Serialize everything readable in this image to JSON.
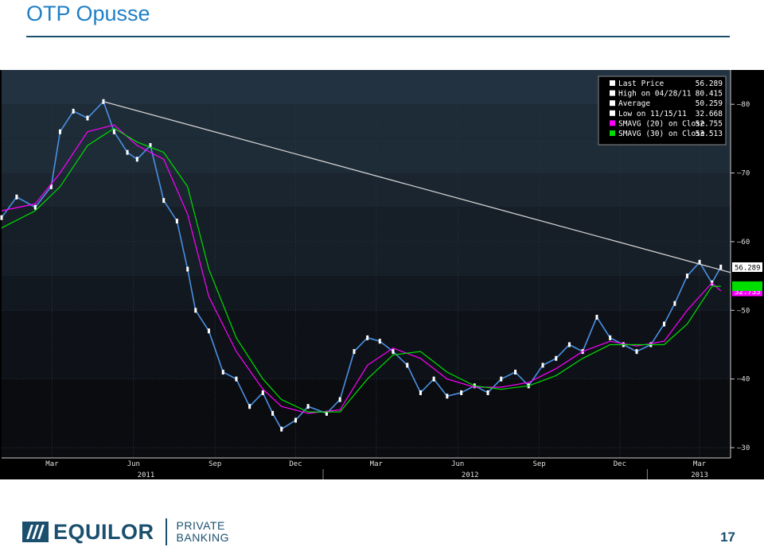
{
  "slide": {
    "title": "OTP Opusse",
    "page_number": "17"
  },
  "footer": {
    "brand": "EQUILOR",
    "sub_line1": "PRIVATE",
    "sub_line2": "BANKING"
  },
  "chart_data": {
    "type": "line",
    "yticks": [
      30,
      40,
      50,
      60,
      70,
      80
    ],
    "ylim": [
      28.5,
      85
    ],
    "months": [
      "Mar",
      "Jun",
      "Sep",
      "Dec",
      "Mar",
      "Jun",
      "Sep",
      "Dec",
      "Mar"
    ],
    "years": [
      "2011",
      "2012",
      "2013"
    ],
    "legend": [
      {
        "label": "Last Price",
        "value": "56.289",
        "color": "#ffffff"
      },
      {
        "label": "High on 04/28/11",
        "value": "80.415",
        "color": "#ffffff"
      },
      {
        "label": "Average",
        "value": "50.259",
        "color": "#ffffff"
      },
      {
        "label": "Low on 11/15/11",
        "value": "32.668",
        "color": "#ffffff"
      },
      {
        "label": "SMAVG (20) on Close",
        "value": "52.755",
        "color": "#ff00ff"
      },
      {
        "label": "SMAVG (30) on Close",
        "value": "53.513",
        "color": "#00dd00"
      }
    ],
    "price_tags": [
      {
        "value": "56.289",
        "y": 56.289,
        "bg": "#ffffff",
        "fg": "#000000"
      },
      {
        "value": "52.755",
        "y": 52.755,
        "bg": "#ff00ff",
        "fg": "#ffffff"
      },
      {
        "value": "53.513",
        "y": 53.513,
        "bg": "#00dd00",
        "fg": "#00dd00"
      }
    ],
    "series": [
      {
        "name": "Last Price",
        "color": "#4a90e2",
        "x": [
          "2011-01-03",
          "2011-01-20",
          "2011-02-10",
          "2011-02-28",
          "2011-03-10",
          "2011-03-25",
          "2011-04-10",
          "2011-04-28",
          "2011-05-10",
          "2011-05-25",
          "2011-06-05",
          "2011-06-20",
          "2011-07-05",
          "2011-07-20",
          "2011-08-01",
          "2011-08-10",
          "2011-08-25",
          "2011-09-10",
          "2011-09-25",
          "2011-10-10",
          "2011-10-25",
          "2011-11-05",
          "2011-11-15",
          "2011-12-01",
          "2011-12-15",
          "2012-01-05",
          "2012-01-20",
          "2012-02-05",
          "2012-02-20",
          "2012-03-05",
          "2012-03-20",
          "2012-04-05",
          "2012-04-20",
          "2012-05-05",
          "2012-05-20",
          "2012-06-05",
          "2012-06-20",
          "2012-07-05",
          "2012-07-20",
          "2012-08-05",
          "2012-08-20",
          "2012-09-05",
          "2012-09-20",
          "2012-10-05",
          "2012-10-20",
          "2012-11-05",
          "2012-11-20",
          "2012-12-05",
          "2012-12-20",
          "2013-01-05",
          "2013-01-20",
          "2013-02-01",
          "2013-02-15",
          "2013-03-01",
          "2013-03-15",
          "2013-03-25"
        ],
        "y": [
          63.5,
          66.5,
          65,
          68,
          76,
          79,
          78,
          80.4,
          76,
          73,
          72,
          74,
          66,
          63,
          56,
          50,
          47,
          41,
          40,
          36,
          38,
          35,
          32.7,
          34,
          36,
          35,
          37,
          44,
          46,
          45.5,
          44,
          42,
          38,
          40,
          37.5,
          38,
          39,
          38,
          40,
          41,
          39,
          42,
          43,
          45,
          44,
          49,
          46,
          45,
          44,
          45,
          48,
          51,
          55,
          57,
          54,
          56.3
        ]
      },
      {
        "name": "SMAVG (20) on Close",
        "color": "#ff00ff",
        "x": [
          "2011-01-03",
          "2011-02-10",
          "2011-03-10",
          "2011-04-10",
          "2011-05-10",
          "2011-06-05",
          "2011-07-05",
          "2011-08-01",
          "2011-08-25",
          "2011-09-25",
          "2011-10-25",
          "2011-11-15",
          "2011-12-15",
          "2012-01-20",
          "2012-02-20",
          "2012-03-20",
          "2012-04-20",
          "2012-05-20",
          "2012-06-20",
          "2012-07-20",
          "2012-08-20",
          "2012-09-20",
          "2012-10-20",
          "2012-11-20",
          "2012-12-20",
          "2013-01-20",
          "2013-02-15",
          "2013-03-15",
          "2013-03-25"
        ],
        "y": [
          64.5,
          65.5,
          70,
          76,
          77,
          74,
          72,
          64,
          52,
          44,
          38.5,
          36,
          35,
          35.5,
          42,
          44.5,
          43,
          40,
          38.8,
          38.8,
          39.5,
          41.5,
          44,
          45.5,
          44.8,
          45.5,
          50,
          54,
          52.8
        ]
      },
      {
        "name": "SMAVG (30) on Close",
        "color": "#00dd00",
        "x": [
          "2011-01-03",
          "2011-02-10",
          "2011-03-10",
          "2011-04-10",
          "2011-05-10",
          "2011-06-05",
          "2011-07-05",
          "2011-08-01",
          "2011-08-25",
          "2011-09-25",
          "2011-10-25",
          "2011-11-15",
          "2011-12-15",
          "2012-01-20",
          "2012-02-20",
          "2012-03-20",
          "2012-04-20",
          "2012-05-20",
          "2012-06-20",
          "2012-07-20",
          "2012-08-20",
          "2012-09-20",
          "2012-10-20",
          "2012-11-20",
          "2012-12-20",
          "2013-01-20",
          "2013-02-15",
          "2013-03-15",
          "2013-03-25"
        ],
        "y": [
          62,
          64.5,
          68,
          74,
          76.5,
          74.5,
          73,
          68,
          56,
          46,
          40,
          37,
          35.2,
          35.2,
          40,
          43.5,
          44,
          41,
          39,
          38.5,
          39,
          40.5,
          43,
          45,
          45,
          45,
          48,
          53.5,
          53.5
        ]
      },
      {
        "name": "Trend line",
        "color": "#d0d0d0",
        "x": [
          "2011-04-28",
          "2013-04-05"
        ],
        "y": [
          80.4,
          55.5
        ]
      }
    ]
  }
}
